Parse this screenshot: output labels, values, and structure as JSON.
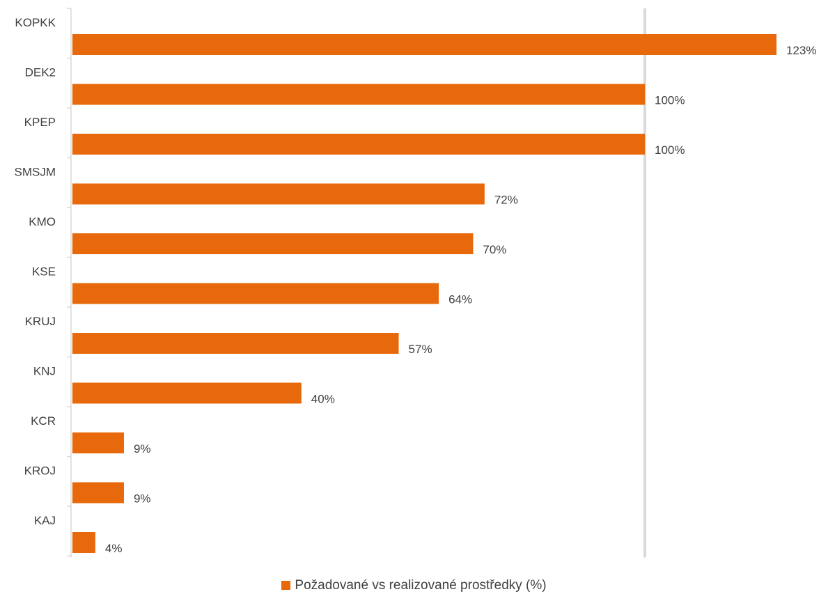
{
  "chart_data": {
    "type": "bar",
    "orientation": "horizontal",
    "categories": [
      "KOPKK",
      "DEK2",
      "KPEP",
      "SMSJM",
      "KMO",
      "KSE",
      "KRUJ",
      "KNJ",
      "KCR",
      "KROJ",
      "KAJ"
    ],
    "series": [
      {
        "name": "Požadované vs realizované prostředky (%)",
        "values": [
          123,
          100,
          100,
          72,
          70,
          64,
          57,
          40,
          9,
          9,
          4
        ],
        "labels": [
          "123%",
          "100%",
          "100%",
          "72%",
          "70%",
          "64%",
          "57%",
          "40%",
          "9%",
          "9%",
          "4%"
        ]
      }
    ],
    "xlim": [
      0,
      124
    ],
    "reference_line": 100,
    "legend_position": "bottom",
    "colors": {
      "bar": "#E8690B",
      "reference_line": "#D9D9D9",
      "axis": "#D9D9D9",
      "text": "#404040"
    }
  }
}
